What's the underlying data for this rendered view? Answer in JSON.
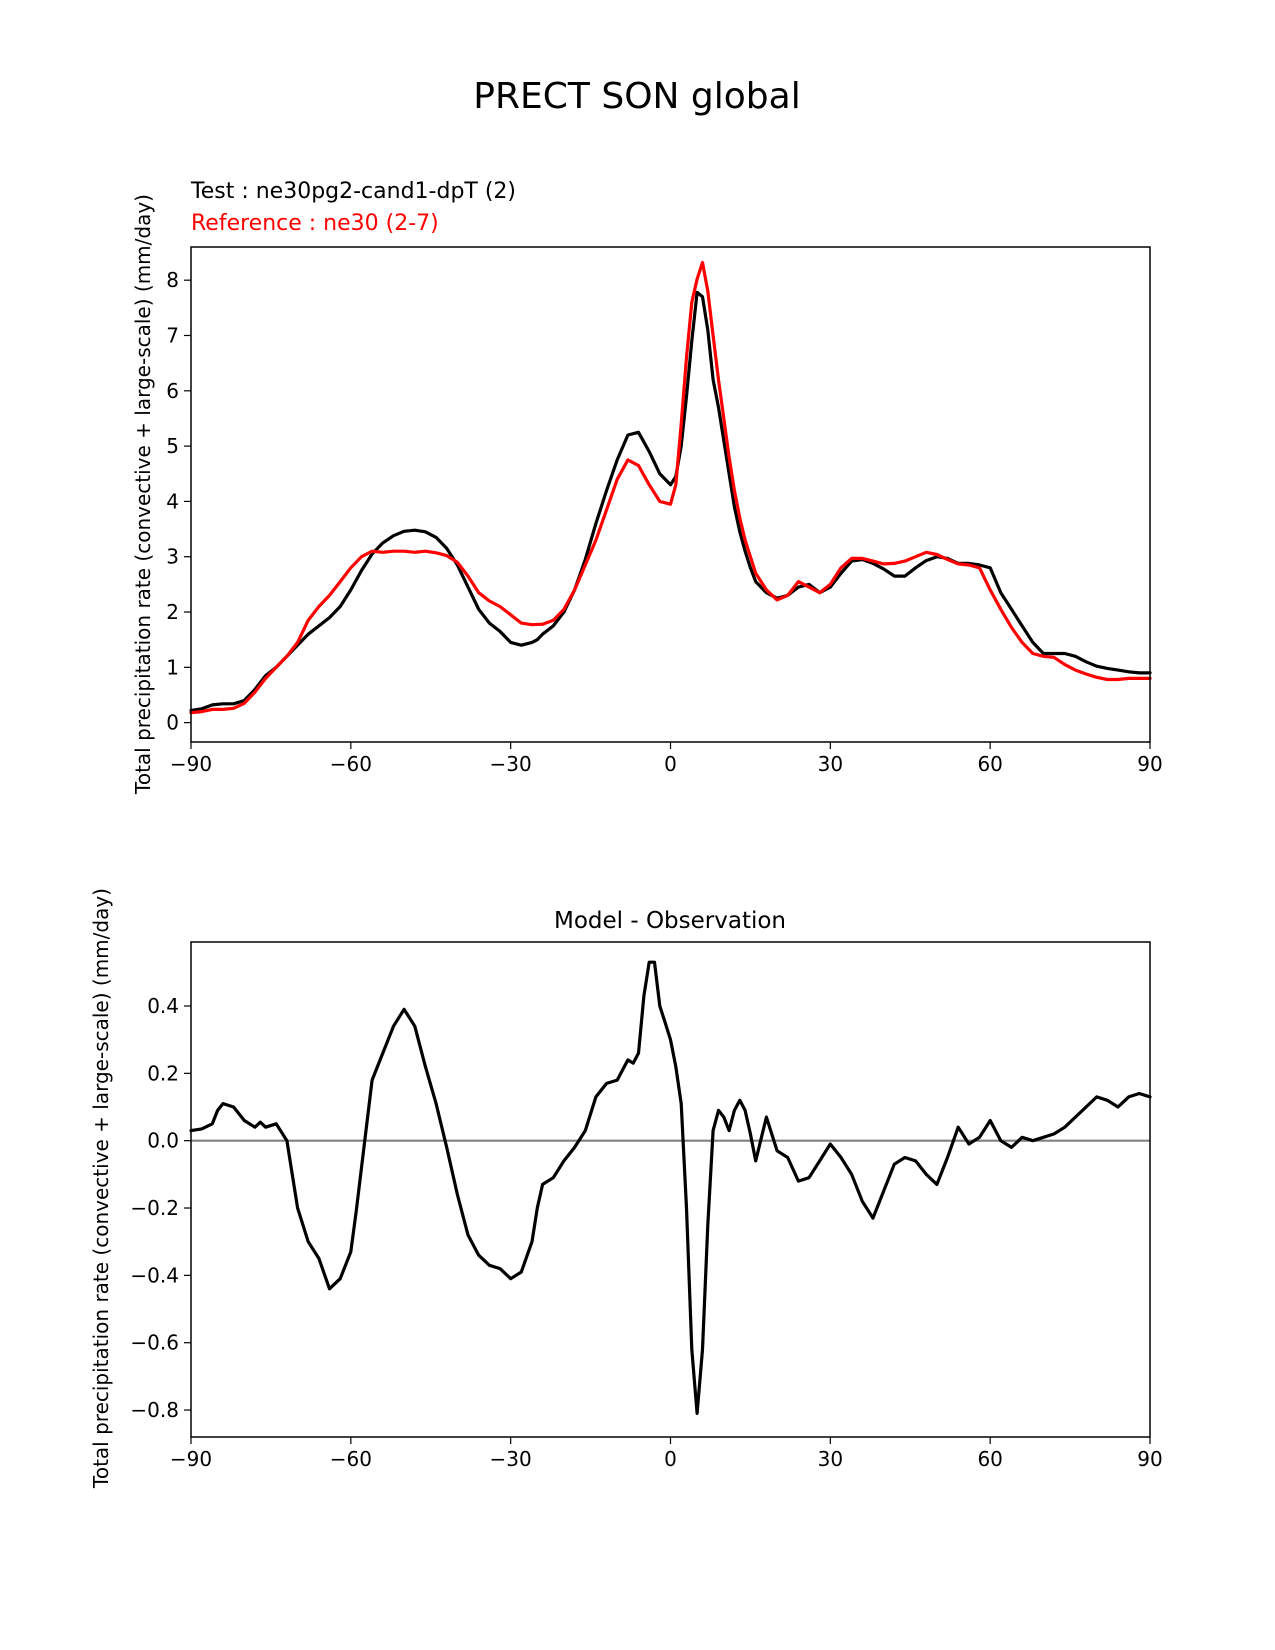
{
  "figure": {
    "title": "PRECT SON global"
  },
  "chart_data": [
    {
      "type": "line",
      "legend_position": "top-left (above axes)",
      "xlim": [
        -90,
        90
      ],
      "ylim": [
        -0.35,
        8.6
      ],
      "xticks": [
        -90,
        -60,
        -30,
        0,
        30,
        60,
        90
      ],
      "xtick_labels": [
        "−90",
        "−60",
        "−30",
        "0",
        "30",
        "60",
        "90"
      ],
      "yticks": [
        0,
        1,
        2,
        3,
        4,
        5,
        6,
        7,
        8
      ],
      "ytick_labels": [
        "0",
        "1",
        "2",
        "3",
        "4",
        "5",
        "6",
        "7",
        "8"
      ],
      "ylabel": "Total precipitation rate (convective + large-scale) (mm/day)",
      "xlabel": "",
      "title": "",
      "series": [
        {
          "name": "Test : ne30pg2-cand1-dpT (2)",
          "color": "#000000",
          "x": [
            -90,
            -88,
            -86,
            -84,
            -82,
            -80,
            -78,
            -76,
            -74,
            -72,
            -70,
            -68,
            -66,
            -64,
            -62,
            -60,
            -58,
            -56,
            -54,
            -52,
            -50,
            -48,
            -46,
            -44,
            -42,
            -40,
            -38,
            -36,
            -34,
            -32,
            -30,
            -28,
            -26,
            -25,
            -24,
            -22,
            -20,
            -18,
            -16,
            -14,
            -12,
            -10,
            -8,
            -6,
            -4,
            -2,
            0,
            1,
            2,
            3,
            4,
            5,
            6,
            7,
            8,
            9,
            10,
            11,
            12,
            13,
            14,
            15,
            16,
            18,
            20,
            22,
            24,
            26,
            28,
            30,
            32,
            34,
            36,
            38,
            40,
            42,
            44,
            46,
            48,
            50,
            52,
            54,
            56,
            58,
            60,
            62,
            64,
            66,
            68,
            70,
            72,
            74,
            76,
            78,
            80,
            82,
            84,
            86,
            88,
            90
          ],
          "values": [
            0.22,
            0.25,
            0.32,
            0.34,
            0.34,
            0.4,
            0.6,
            0.85,
            1.0,
            1.2,
            1.4,
            1.6,
            1.75,
            1.9,
            2.1,
            2.4,
            2.75,
            3.05,
            3.25,
            3.38,
            3.46,
            3.48,
            3.45,
            3.35,
            3.15,
            2.85,
            2.45,
            2.05,
            1.8,
            1.65,
            1.45,
            1.4,
            1.45,
            1.5,
            1.6,
            1.75,
            2.0,
            2.4,
            2.95,
            3.6,
            4.2,
            4.75,
            5.2,
            5.25,
            4.9,
            4.5,
            4.3,
            4.45,
            5.0,
            5.9,
            6.9,
            7.78,
            7.7,
            7.1,
            6.2,
            5.7,
            5.1,
            4.5,
            3.9,
            3.45,
            3.1,
            2.8,
            2.55,
            2.35,
            2.25,
            2.3,
            2.45,
            2.5,
            2.35,
            2.45,
            2.7,
            2.92,
            2.95,
            2.88,
            2.78,
            2.65,
            2.65,
            2.8,
            2.93,
            3.0,
            2.97,
            2.88,
            2.88,
            2.85,
            2.8,
            2.35,
            2.05,
            1.75,
            1.45,
            1.25,
            1.25,
            1.25,
            1.2,
            1.1,
            1.02,
            0.98,
            0.95,
            0.92,
            0.9,
            0.9
          ]
        },
        {
          "name": "Reference : ne30 (2-7)",
          "color": "#ff0000",
          "x": [
            -90,
            -88,
            -86,
            -84,
            -82,
            -80,
            -78,
            -76,
            -74,
            -72,
            -70,
            -68,
            -66,
            -64,
            -62,
            -60,
            -58,
            -56,
            -54,
            -52,
            -50,
            -48,
            -46,
            -44,
            -42,
            -40,
            -38,
            -36,
            -34,
            -32,
            -30,
            -28,
            -26,
            -24,
            -22,
            -20,
            -18,
            -16,
            -14,
            -12,
            -10,
            -8,
            -6,
            -4,
            -2,
            0,
            1,
            2,
            3,
            4,
            5,
            6,
            7,
            8,
            9,
            10,
            11,
            12,
            13,
            14,
            15,
            16,
            18,
            20,
            22,
            24,
            26,
            28,
            30,
            32,
            34,
            36,
            38,
            40,
            42,
            44,
            46,
            48,
            50,
            52,
            54,
            56,
            58,
            60,
            62,
            64,
            66,
            68,
            70,
            72,
            74,
            76,
            78,
            80,
            82,
            84,
            86,
            88,
            90
          ],
          "values": [
            0.18,
            0.2,
            0.24,
            0.24,
            0.26,
            0.35,
            0.55,
            0.8,
            1.0,
            1.2,
            1.45,
            1.85,
            2.1,
            2.3,
            2.55,
            2.8,
            3.0,
            3.1,
            3.08,
            3.1,
            3.1,
            3.08,
            3.1,
            3.07,
            3.02,
            2.9,
            2.65,
            2.35,
            2.2,
            2.1,
            1.95,
            1.8,
            1.77,
            1.78,
            1.85,
            2.05,
            2.4,
            2.85,
            3.3,
            3.85,
            4.4,
            4.75,
            4.65,
            4.3,
            4.0,
            3.95,
            4.3,
            5.4,
            6.6,
            7.6,
            8.02,
            8.32,
            7.8,
            7.0,
            6.2,
            5.5,
            4.8,
            4.2,
            3.7,
            3.3,
            3.0,
            2.7,
            2.4,
            2.22,
            2.3,
            2.55,
            2.45,
            2.35,
            2.5,
            2.8,
            2.97,
            2.97,
            2.92,
            2.87,
            2.88,
            2.92,
            3.0,
            3.08,
            3.04,
            2.95,
            2.87,
            2.85,
            2.8,
            2.4,
            2.05,
            1.72,
            1.45,
            1.25,
            1.2,
            1.18,
            1.05,
            0.95,
            0.88,
            0.82,
            0.78,
            0.78,
            0.8,
            0.8,
            0.8
          ]
        }
      ]
    },
    {
      "type": "line",
      "title": "Model - Observation",
      "xlim": [
        -90,
        90
      ],
      "ylim": [
        -0.88,
        0.59
      ],
      "xticks": [
        -90,
        -60,
        -30,
        0,
        30,
        60,
        90
      ],
      "xtick_labels": [
        "−90",
        "−60",
        "−30",
        "0",
        "30",
        "60",
        "90"
      ],
      "yticks": [
        -0.8,
        -0.6,
        -0.4,
        -0.2,
        0.0,
        0.2,
        0.4
      ],
      "ytick_labels": [
        "−0.8",
        "−0.6",
        "−0.4",
        "−0.2",
        "0.0",
        "0.2",
        "0.4"
      ],
      "ylabel": "Total precipitation rate (convective + large-scale) (mm/day)",
      "xlabel": "",
      "zero_line": {
        "value": 0,
        "color": "#808080"
      },
      "series": [
        {
          "name": "Model - Observation",
          "color": "#000000",
          "x": [
            -90,
            -88,
            -86,
            -85,
            -84,
            -82,
            -80,
            -78,
            -77,
            -76,
            -74,
            -72,
            -70,
            -68,
            -66,
            -64,
            -62,
            -60,
            -59,
            -58,
            -56,
            -54,
            -52,
            -50,
            -48,
            -46,
            -44,
            -42,
            -40,
            -38,
            -36,
            -34,
            -32,
            -30,
            -28,
            -26,
            -25,
            -24,
            -22,
            -20,
            -18,
            -16,
            -14,
            -12,
            -10,
            -8,
            -7,
            -6,
            -5,
            -4,
            -3,
            -2,
            -1,
            0,
            1,
            2,
            3,
            4,
            5,
            6,
            7,
            8,
            9,
            10,
            11,
            12,
            13,
            14,
            15,
            16,
            18,
            20,
            22,
            24,
            26,
            28,
            30,
            32,
            34,
            36,
            38,
            40,
            42,
            44,
            46,
            48,
            50,
            52,
            54,
            56,
            58,
            60,
            62,
            64,
            66,
            68,
            70,
            72,
            74,
            76,
            78,
            80,
            82,
            84,
            86,
            88,
            90
          ],
          "values": [
            0.03,
            0.035,
            0.05,
            0.09,
            0.11,
            0.1,
            0.06,
            0.04,
            0.055,
            0.04,
            0.05,
            0.0,
            -0.2,
            -0.3,
            -0.35,
            -0.44,
            -0.41,
            -0.33,
            -0.21,
            -0.08,
            0.18,
            0.26,
            0.34,
            0.39,
            0.34,
            0.22,
            0.11,
            -0.02,
            -0.16,
            -0.28,
            -0.34,
            -0.37,
            -0.38,
            -0.41,
            -0.39,
            -0.3,
            -0.2,
            -0.13,
            -0.11,
            -0.06,
            -0.02,
            0.03,
            0.13,
            0.17,
            0.18,
            0.24,
            0.23,
            0.26,
            0.43,
            0.53,
            0.53,
            0.4,
            0.35,
            0.3,
            0.22,
            0.11,
            -0.2,
            -0.62,
            -0.81,
            -0.62,
            -0.25,
            0.03,
            0.09,
            0.07,
            0.03,
            0.09,
            0.12,
            0.09,
            0.02,
            -0.06,
            0.07,
            -0.03,
            -0.05,
            -0.12,
            -0.11,
            -0.06,
            -0.01,
            -0.05,
            -0.1,
            -0.18,
            -0.23,
            -0.15,
            -0.07,
            -0.05,
            -0.06,
            -0.1,
            -0.13,
            -0.05,
            0.04,
            -0.01,
            0.01,
            0.06,
            0.0,
            -0.02,
            0.01,
            0.0,
            0.01,
            0.02,
            0.04,
            0.07,
            0.1,
            0.13,
            0.12,
            0.1,
            0.13,
            0.14,
            0.13
          ]
        }
      ]
    }
  ]
}
